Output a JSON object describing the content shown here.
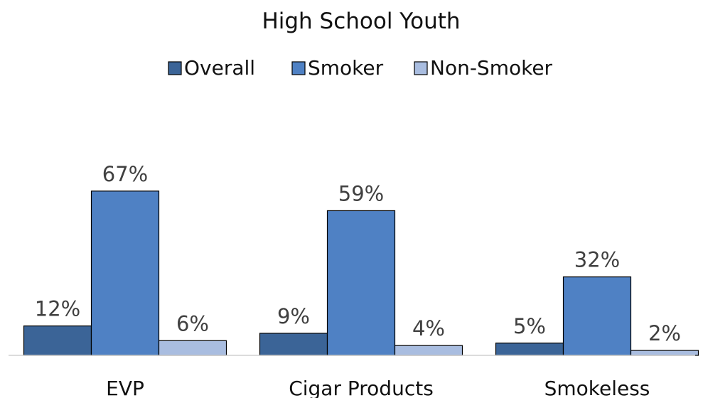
{
  "chart_data": {
    "type": "bar",
    "title": "High School Youth",
    "categories": [
      "EVP",
      "Cigar Products",
      "Smokeless"
    ],
    "series": [
      {
        "name": "Overall",
        "values": [
          12,
          9,
          5
        ],
        "labels": [
          "12%",
          "9%",
          "5%"
        ],
        "color": "#3b6497"
      },
      {
        "name": "Smoker",
        "values": [
          67,
          59,
          32
        ],
        "labels": [
          "67%",
          "59%",
          "32%"
        ],
        "color": "#4f81c4"
      },
      {
        "name": "Non-Smoker",
        "values": [
          6,
          4,
          2
        ],
        "labels": [
          "6%",
          "4%",
          "2%"
        ],
        "color": "#a9bde0"
      }
    ],
    "ylim": [
      0,
      100
    ],
    "grid": false,
    "legend_position": "top-center",
    "xlabel": "",
    "ylabel": ""
  }
}
